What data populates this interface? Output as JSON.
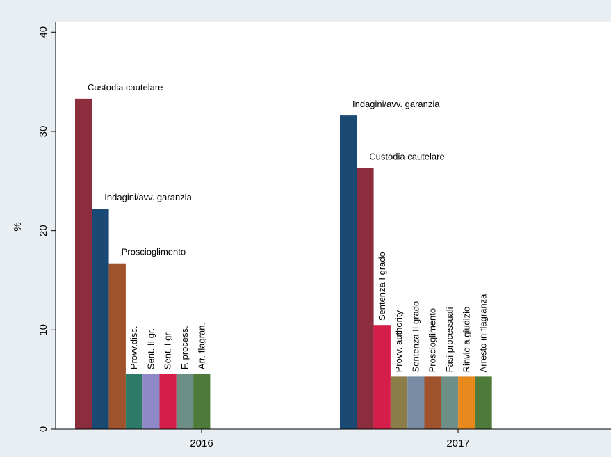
{
  "chart_data": {
    "type": "bar",
    "ylabel": "%",
    "ylim": [
      0,
      41
    ],
    "yticks": [
      0,
      10,
      20,
      30,
      40
    ],
    "grid": false,
    "categories": [
      "2016",
      "2017"
    ],
    "groups": [
      {
        "category": "2016",
        "bars": [
          {
            "label": "Custodia cautelare",
            "value": 33.3,
            "color": "#8b2d3c",
            "orientation": "horizontal"
          },
          {
            "label": "Indagini/avv. garanzia",
            "value": 22.2,
            "color": "#1a4a73",
            "orientation": "horizontal"
          },
          {
            "label": "Proscioglimento",
            "value": 16.7,
            "color": "#a0522d",
            "orientation": "horizontal"
          },
          {
            "label": "Provv.disc.",
            "value": 5.6,
            "color": "#2e7a68",
            "orientation": "vertical"
          },
          {
            "label": "Sent. II gr.",
            "value": 5.6,
            "color": "#8e88c6",
            "orientation": "vertical"
          },
          {
            "label": "Sent. I gr.",
            "value": 5.6,
            "color": "#d51f4a",
            "orientation": "vertical"
          },
          {
            "label": "F. process.",
            "value": 5.6,
            "color": "#6e8f86",
            "orientation": "vertical"
          },
          {
            "label": "Arr. flagran.",
            "value": 5.6,
            "color": "#4e7a3a",
            "orientation": "vertical"
          }
        ]
      },
      {
        "category": "2017",
        "bars": [
          {
            "label": "Indagini/avv. garanzia",
            "value": 31.6,
            "color": "#1a4a73",
            "orientation": "horizontal"
          },
          {
            "label": "Custodia cautelare",
            "value": 26.3,
            "color": "#8b2d3c",
            "orientation": "horizontal"
          },
          {
            "label": "Sentenza I grado",
            "value": 10.5,
            "color": "#d51f4a",
            "orientation": "vertical"
          },
          {
            "label": "Provv. authority",
            "value": 5.3,
            "color": "#8c7d48",
            "orientation": "vertical"
          },
          {
            "label": "Sentenza II grado",
            "value": 5.3,
            "color": "#7a8ca4",
            "orientation": "vertical"
          },
          {
            "label": "Proscioglimento",
            "value": 5.3,
            "color": "#a0522d",
            "orientation": "vertical"
          },
          {
            "label": "Fasi processuali",
            "value": 5.3,
            "color": "#6e8f86",
            "orientation": "vertical"
          },
          {
            "label": "Rinvio a giudizio",
            "value": 5.3,
            "color": "#e8891e",
            "orientation": "vertical"
          },
          {
            "label": "Arresto in flagranza",
            "value": 5.3,
            "color": "#4e7a3a",
            "orientation": "vertical"
          }
        ]
      }
    ]
  }
}
